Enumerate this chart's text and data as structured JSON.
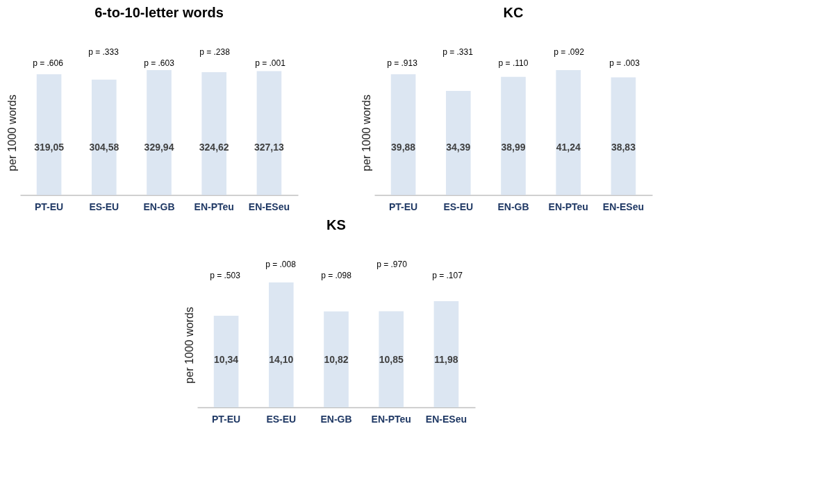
{
  "chart_data": [
    {
      "type": "bar",
      "title": "6-to-10-letter words",
      "ylabel": "per 1000 words",
      "categories": [
        "PT-EU",
        "ES-EU",
        "EN-GB",
        "EN-PTeu",
        "EN-ESeu"
      ],
      "values": [
        319.05,
        304.58,
        329.94,
        324.62,
        327.13
      ],
      "value_labels": [
        "319,05",
        "304,58",
        "329,94",
        "324,62",
        "327,13"
      ],
      "color": "#dce6f2",
      "tick_labels": "x",
      "grid": false,
      "annotations": [
        "p = .606",
        "p = .333",
        "p = .603",
        "p = .238",
        "p = .001"
      ]
    },
    {
      "type": "bar",
      "title": "KC",
      "ylabel": "per 1000 words",
      "categories": [
        "PT-EU",
        "ES-EU",
        "EN-GB",
        "EN-PTeu",
        "EN-ESeu"
      ],
      "values": [
        39.88,
        34.39,
        38.99,
        41.24,
        38.83
      ],
      "value_labels": [
        "39,88",
        "34,39",
        "38,99",
        "41,24",
        "38,83"
      ],
      "color": "#dce6f2",
      "tick_labels": "x",
      "grid": false,
      "annotations": [
        "p = .913",
        "p = .331",
        "p = .110",
        "p = .092",
        "p = .003"
      ]
    },
    {
      "type": "bar",
      "title": "KS",
      "ylabel": "per 1000 words",
      "categories": [
        "PT-EU",
        "ES-EU",
        "EN-GB",
        "EN-PTeu",
        "EN-ESeu"
      ],
      "values": [
        10.34,
        14.1,
        10.82,
        10.85,
        11.98
      ],
      "value_labels": [
        "10,34",
        "14,10",
        "10,82",
        "10,85",
        "11,98"
      ],
      "color": "#dce6f2",
      "tick_labels": "x",
      "grid": false,
      "annotations": [
        "p = .503",
        "p = .008",
        "p = .098",
        "p = .970",
        "p = .107"
      ]
    }
  ]
}
